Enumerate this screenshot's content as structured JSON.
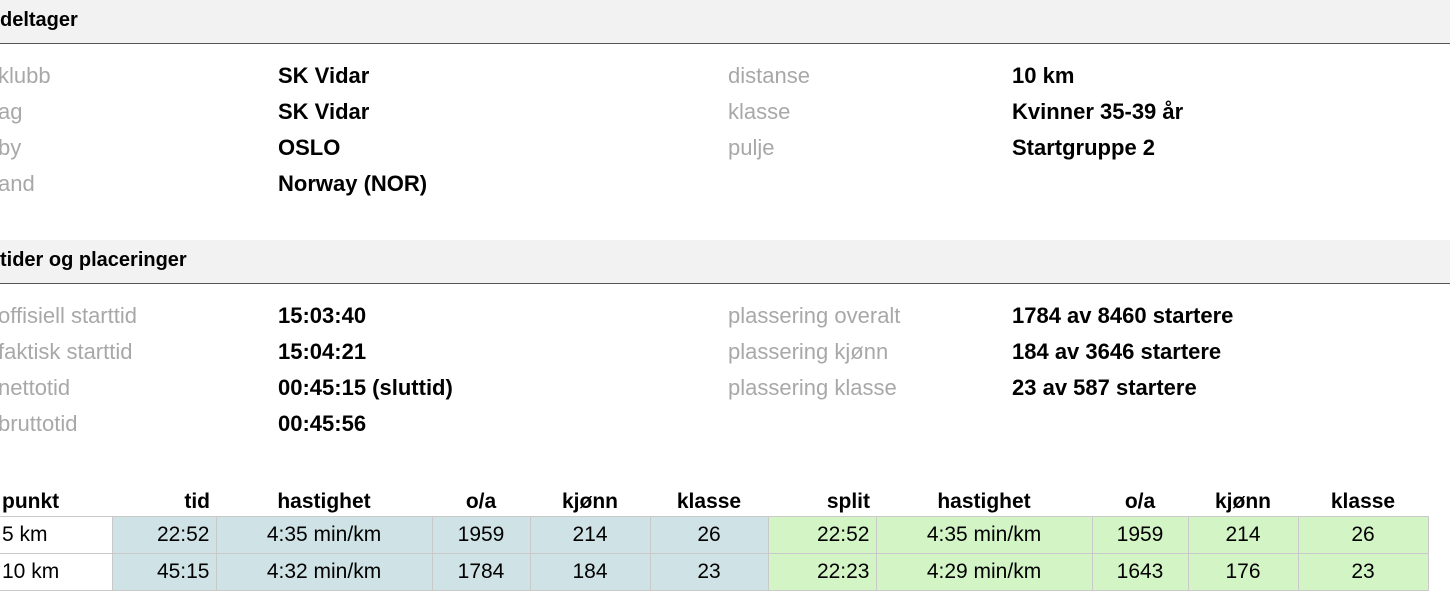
{
  "participant_section": {
    "title": "deltager",
    "left_rows": [
      {
        "label": "klubb",
        "value": "SK Vidar"
      },
      {
        "label": "ag",
        "value": "SK Vidar"
      },
      {
        "label": "by",
        "value": "OSLO"
      },
      {
        "label": "and",
        "value": "Norway (NOR)"
      }
    ],
    "right_rows": [
      {
        "label": "distanse",
        "value": "10 km"
      },
      {
        "label": "klasse",
        "value": "Kvinner 35-39 år"
      },
      {
        "label": "pulje",
        "value": "Startgruppe 2"
      }
    ]
  },
  "results_section": {
    "title": "tider og placeringer",
    "left_rows": [
      {
        "label": "offisiell starttid",
        "value": "15:03:40"
      },
      {
        "label": "faktisk starttid",
        "value": "15:04:21"
      },
      {
        "label": "nettotid",
        "value": "00:45:15 (sluttid)"
      },
      {
        "label": "bruttotid",
        "value": "00:45:56"
      }
    ],
    "right_rows": [
      {
        "label": "plassering overalt",
        "value": "1784 av 8460 startere"
      },
      {
        "label": "plassering kjønn",
        "value": "184 av 3646 startere"
      },
      {
        "label": "plassering klasse",
        "value": "23 av 587 startere"
      }
    ]
  },
  "splits_table": {
    "headers": [
      "punkt",
      "tid",
      "hastighet",
      "o/a",
      "kjønn",
      "klasse",
      "split",
      "hastighet",
      "o/a",
      "kjønn",
      "klasse"
    ],
    "rows": [
      [
        "5 km",
        "22:52",
        "4:35 min/km",
        "1959",
        "214",
        "26",
        "22:52",
        "4:35 min/km",
        "1959",
        "214",
        "26"
      ],
      [
        "10 km",
        "45:15",
        "4:32 min/km",
        "1784",
        "184",
        "23",
        "22:23",
        "4:29 min/km",
        "1643",
        "176",
        "23"
      ]
    ]
  },
  "colors": {
    "cumulative_cells": "#cfe2e5",
    "split_cells": "#d3f5c6",
    "label_text": "#a8a8a8"
  }
}
